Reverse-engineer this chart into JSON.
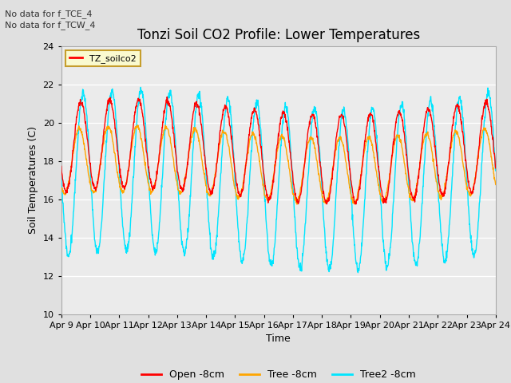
{
  "title": "Tonzi Soil CO2 Profile: Lower Temperatures",
  "xlabel": "Time",
  "ylabel": "Soil Temperatures (C)",
  "ylim": [
    10,
    24
  ],
  "yticks": [
    10,
    12,
    14,
    16,
    18,
    20,
    22,
    24
  ],
  "x_tick_labels": [
    "Apr 9",
    "Apr 10",
    "Apr 11",
    "Apr 12",
    "Apr 13",
    "Apr 14",
    "Apr 15",
    "Apr 16",
    "Apr 17",
    "Apr 18",
    "Apr 19",
    "Apr 20",
    "Apr 21",
    "Apr 22",
    "Apr 23",
    "Apr 24"
  ],
  "annotations": [
    "No data for f_TCE_4",
    "No data for f_TCW_4"
  ],
  "legend_title": "TZ_soilco2",
  "legend_entries": [
    "Open -8cm",
    "Tree -8cm",
    "Tree2 -8cm"
  ],
  "line_colors": [
    "#ff0000",
    "#ffa500",
    "#00e5ff"
  ],
  "title_fontsize": 12,
  "tick_fontsize": 8,
  "label_fontsize": 9,
  "annot_fontsize": 8,
  "bg_color": "#e0e0e0",
  "plot_bg_color": "#ebebeb",
  "n_days": 15,
  "ppd": 96
}
